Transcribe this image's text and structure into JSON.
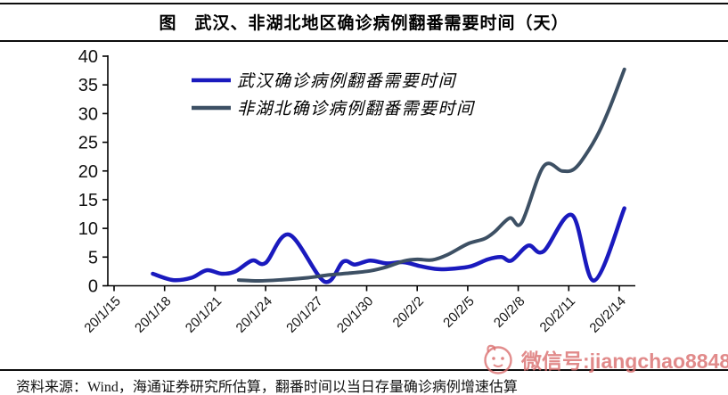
{
  "figure": {
    "source_note": "资料来源：Wind，海通证券研究所估算，翻番时间以当日存量确诊病例增速估算"
  },
  "watermark": {
    "icon": "wechat-avatar-icon",
    "label": "微信号:jiangchao8848",
    "color": "#db7070"
  },
  "chart_data": {
    "type": "line",
    "title": "图　武汉、非湖北地区确诊病例翻番需要时间（天）",
    "xlabel": "",
    "ylabel": "",
    "ylim": [
      0,
      40
    ],
    "y_ticks": [
      0,
      5,
      10,
      15,
      20,
      25,
      30,
      35,
      40
    ],
    "x_unit": "days since 2020/1/15",
    "x_tick_days": [
      0,
      3,
      6,
      9,
      12,
      15,
      18,
      21,
      24,
      27,
      30
    ],
    "x_tick_labels": [
      "20/1/15",
      "20/1/18",
      "20/1/21",
      "20/1/24",
      "20/1/27",
      "20/1/30",
      "20/2/2",
      "20/2/5",
      "20/2/8",
      "20/2/11",
      "20/2/14"
    ],
    "grid": false,
    "legend_position": "top-left",
    "axis_color": "#000000",
    "series": [
      {
        "name": "武汉确诊病例翻番需要时间",
        "color": "#1a1abe",
        "width": 4.5,
        "points": [
          [
            2.3,
            2.1
          ],
          [
            3.5,
            1.0
          ],
          [
            4.6,
            1.4
          ],
          [
            5.5,
            2.7
          ],
          [
            6.4,
            2.1
          ],
          [
            7.2,
            2.5
          ],
          [
            8.2,
            4.4
          ],
          [
            9.0,
            4.0
          ],
          [
            10.4,
            8.9
          ],
          [
            12.5,
            0.7
          ],
          [
            13.6,
            4.2
          ],
          [
            14.3,
            3.7
          ],
          [
            15.2,
            4.4
          ],
          [
            16.2,
            3.9
          ],
          [
            17.2,
            4.1
          ],
          [
            18.2,
            3.4
          ],
          [
            19.2,
            2.9
          ],
          [
            20.2,
            3.0
          ],
          [
            21.2,
            3.4
          ],
          [
            22.2,
            4.6
          ],
          [
            23.0,
            5.0
          ],
          [
            23.6,
            4.4
          ],
          [
            24.6,
            7.0
          ],
          [
            25.5,
            6.0
          ],
          [
            27.2,
            12.3
          ],
          [
            28.5,
            0.9
          ],
          [
            30.3,
            13.5
          ]
        ]
      },
      {
        "name": "非湖北确诊病例翻番需要时间",
        "color": "#3d5064",
        "width": 4,
        "points": [
          [
            7.4,
            1.0
          ],
          [
            8.6,
            0.85
          ],
          [
            10.0,
            1.05
          ],
          [
            11.5,
            1.4
          ],
          [
            12.8,
            1.9
          ],
          [
            14.0,
            2.2
          ],
          [
            15.2,
            2.6
          ],
          [
            16.2,
            3.3
          ],
          [
            17.2,
            4.3
          ],
          [
            18.0,
            4.6
          ],
          [
            18.9,
            4.5
          ],
          [
            19.8,
            5.4
          ],
          [
            21.0,
            7.3
          ],
          [
            22.0,
            8.2
          ],
          [
            22.6,
            9.4
          ],
          [
            23.5,
            11.8
          ],
          [
            24.2,
            11.0
          ],
          [
            25.5,
            20.8
          ],
          [
            26.6,
            20.0
          ],
          [
            27.3,
            20.3
          ],
          [
            28.0,
            22.8
          ],
          [
            28.8,
            26.8
          ],
          [
            29.5,
            31.5
          ],
          [
            30.3,
            37.7
          ]
        ]
      }
    ]
  }
}
